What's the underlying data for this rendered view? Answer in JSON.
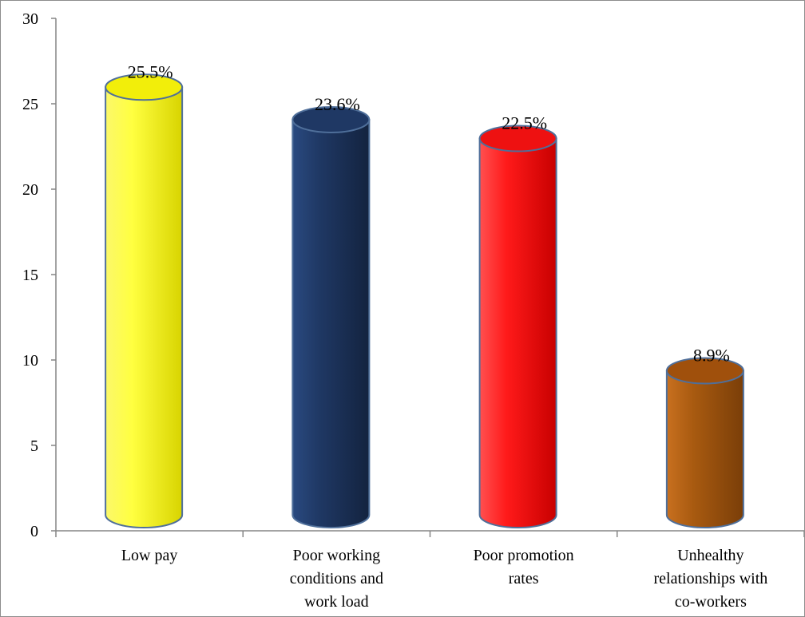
{
  "chart_data": {
    "type": "bar",
    "style": "3d-cylinder",
    "categories": [
      [
        "Low pay"
      ],
      [
        "Poor working",
        "conditions and",
        "work load"
      ],
      [
        "Poor promotion",
        "rates"
      ],
      [
        "Unhealthy",
        "relationships with",
        "co-workers"
      ]
    ],
    "values": [
      25.5,
      23.6,
      22.5,
      8.9
    ],
    "data_labels": [
      "25.5%",
      "23.6%",
      "22.5%",
      "8.9%"
    ],
    "colors": [
      "#f2ee0a",
      "#1f3864",
      "#ee1111",
      "#a0500c"
    ],
    "ylim": [
      0,
      30
    ],
    "yticks": [
      0,
      5,
      10,
      15,
      20,
      25,
      30
    ],
    "grid": false,
    "legend": false
  }
}
